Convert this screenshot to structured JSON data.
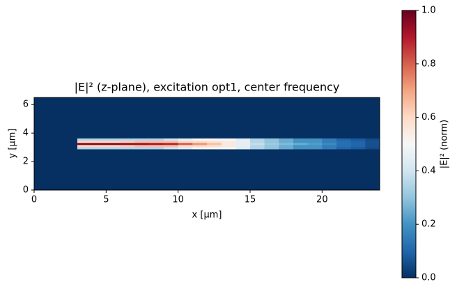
{
  "chart_data": {
    "type": "heatmap",
    "title": "|E|² (z-plane), excitation opt1, center frequency",
    "x_label": "x [µm]",
    "y_label": "y [µm]",
    "colorbar_label": "|E|² (norm)",
    "xlim": [
      0,
      24
    ],
    "ylim": [
      0,
      6.5
    ],
    "xticks": [
      0,
      5,
      10,
      15,
      20
    ],
    "yticks": [
      0,
      2,
      4,
      6
    ],
    "clim": [
      0,
      1
    ],
    "cticks": [
      {
        "value": 0,
        "label": "0.0"
      },
      0.2,
      0.4,
      0.6,
      0.8,
      {
        "value": 1,
        "label": "1.0"
      }
    ],
    "colormap": [
      "#053061",
      "#2166ac",
      "#4393c3",
      "#92c5de",
      "#d1e5f0",
      "#f7f7f7",
      "#fddbc7",
      "#f4a582",
      "#d6604d",
      "#b2182b",
      "#67001f"
    ],
    "x": [
      3.5,
      4.5,
      5.5,
      6.5,
      7.5,
      8.5,
      9.5,
      10.5,
      11.5,
      12.5,
      13.5,
      14.5,
      15.5,
      16.5,
      17.5,
      18.5,
      19.5,
      20.5,
      21.5,
      22.5,
      23.5
    ],
    "y": [
      2.95,
      3.1,
      3.25,
      3.4,
      3.55
    ],
    "z": [
      [
        0.35,
        0.35,
        0.35,
        0.35,
        0.35,
        0.35,
        0.4,
        0.45,
        0.5,
        0.5,
        0.5,
        0.45,
        0.35,
        0.3,
        0.25,
        0.2,
        0.2,
        0.15,
        0.1,
        0.08,
        0.05
      ],
      [
        0.6,
        0.6,
        0.6,
        0.62,
        0.65,
        0.65,
        0.65,
        0.6,
        0.6,
        0.58,
        0.55,
        0.45,
        0.35,
        0.3,
        0.25,
        0.2,
        0.2,
        0.15,
        0.12,
        0.1,
        0.06
      ],
      [
        0.95,
        0.95,
        0.95,
        0.93,
        0.92,
        0.9,
        0.88,
        0.8,
        0.72,
        0.65,
        0.55,
        0.45,
        0.38,
        0.32,
        0.28,
        0.25,
        0.22,
        0.18,
        0.12,
        0.1,
        0.06
      ],
      [
        0.6,
        0.6,
        0.6,
        0.62,
        0.65,
        0.65,
        0.65,
        0.6,
        0.6,
        0.58,
        0.55,
        0.45,
        0.35,
        0.3,
        0.25,
        0.2,
        0.2,
        0.15,
        0.12,
        0.1,
        0.06
      ],
      [
        0.35,
        0.35,
        0.35,
        0.35,
        0.35,
        0.35,
        0.4,
        0.45,
        0.5,
        0.5,
        0.5,
        0.45,
        0.35,
        0.3,
        0.25,
        0.2,
        0.2,
        0.15,
        0.1,
        0.08,
        0.05
      ]
    ]
  }
}
